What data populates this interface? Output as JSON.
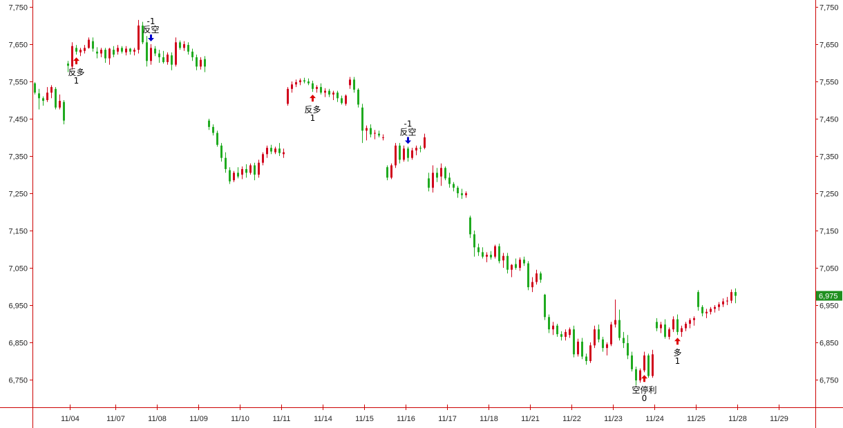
{
  "chart_data": {
    "type": "candlestick",
    "title": "",
    "xlabel": "",
    "ylabel": "",
    "ylim": [
      6680,
      7780
    ],
    "yticks": [
      6750,
      6850,
      6950,
      7050,
      7150,
      7250,
      7350,
      7450,
      7550,
      7650,
      7750
    ],
    "ytick_labels": [
      "6,750",
      "6,850",
      "6,950",
      "7,050",
      "7,150",
      "7,250",
      "7,350",
      "7,450",
      "7,550",
      "7,650",
      "7,750"
    ],
    "date_labels": [
      "11/04",
      "11/07",
      "11/08",
      "11/09",
      "11/10",
      "11/11",
      "11/14",
      "11/15",
      "11/16",
      "11/17",
      "11/18",
      "11/21",
      "11/22",
      "11/23",
      "11/24",
      "11/25",
      "11/28",
      "11/29"
    ],
    "date_start_index": [
      9,
      20,
      30,
      40,
      50,
      60,
      70,
      80,
      90,
      100,
      110,
      120,
      130,
      140,
      150,
      160,
      170,
      180
    ],
    "grid": false,
    "colors": {
      "up": "#d0021b",
      "down": "#1faa1f",
      "axis": "#cc0000",
      "buy": "#dd0000",
      "sell": "#0000cc",
      "last_bg": "#1f8f1f"
    },
    "last_price": {
      "value": 6975,
      "label": "6,975"
    },
    "candles": [
      [
        7545,
        7548,
        7515,
        7520
      ],
      [
        7518,
        7530,
        7475,
        7505
      ],
      [
        7505,
        7510,
        7485,
        7498
      ],
      [
        7500,
        7535,
        7495,
        7520
      ],
      [
        7520,
        7540,
        7505,
        7535
      ],
      [
        7530,
        7535,
        7475,
        7480
      ],
      [
        7480,
        7515,
        7475,
        7498
      ],
      [
        7495,
        7500,
        7435,
        7445
      ],
      [
        7598,
        7605,
        7575,
        7592
      ],
      [
        7590,
        7655,
        7582,
        7645
      ],
      [
        7640,
        7648,
        7622,
        7630
      ],
      [
        7628,
        7640,
        7618,
        7635
      ],
      [
        7632,
        7648,
        7625,
        7640
      ],
      [
        7640,
        7668,
        7638,
        7662
      ],
      [
        7658,
        7668,
        7630,
        7638
      ],
      [
        7630,
        7642,
        7612,
        7625
      ],
      [
        7625,
        7640,
        7615,
        7635
      ],
      [
        7635,
        7640,
        7600,
        7612
      ],
      [
        7612,
        7640,
        7595,
        7638
      ],
      [
        7635,
        7645,
        7615,
        7622
      ],
      [
        7630,
        7648,
        7622,
        7640
      ],
      [
        7640,
        7645,
        7625,
        7630
      ],
      [
        7628,
        7645,
        7620,
        7638
      ],
      [
        7638,
        7640,
        7622,
        7630
      ],
      [
        7630,
        7640,
        7620,
        7635
      ],
      [
        7635,
        7715,
        7625,
        7700
      ],
      [
        7700,
        7710,
        7650,
        7655
      ],
      [
        7655,
        7672,
        7590,
        7605
      ],
      [
        7605,
        7650,
        7595,
        7640
      ],
      [
        7638,
        7645,
        7618,
        7625
      ],
      [
        7625,
        7635,
        7600,
        7615
      ],
      [
        7615,
        7632,
        7598,
        7602
      ],
      [
        7602,
        7628,
        7595,
        7622
      ],
      [
        7620,
        7628,
        7580,
        7595
      ],
      [
        7595,
        7668,
        7590,
        7655
      ],
      [
        7655,
        7660,
        7635,
        7640
      ],
      [
        7640,
        7658,
        7632,
        7650
      ],
      [
        7648,
        7655,
        7622,
        7630
      ],
      [
        7630,
        7638,
        7605,
        7615
      ],
      [
        7615,
        7622,
        7580,
        7590
      ],
      [
        7590,
        7615,
        7582,
        7608
      ],
      [
        7610,
        7618,
        7575,
        7590
      ],
      [
        7445,
        7450,
        7420,
        7428
      ],
      [
        7428,
        7435,
        7405,
        7412
      ],
      [
        7412,
        7418,
        7375,
        7380
      ],
      [
        7378,
        7385,
        7335,
        7345
      ],
      [
        7345,
        7360,
        7305,
        7315
      ],
      [
        7312,
        7320,
        7275,
        7282
      ],
      [
        7285,
        7310,
        7280,
        7305
      ],
      [
        7305,
        7320,
        7290,
        7295
      ],
      [
        7300,
        7322,
        7288,
        7315
      ],
      [
        7315,
        7328,
        7292,
        7305
      ],
      [
        7305,
        7330,
        7300,
        7325
      ],
      [
        7325,
        7332,
        7285,
        7300
      ],
      [
        7300,
        7340,
        7292,
        7332
      ],
      [
        7332,
        7360,
        7325,
        7355
      ],
      [
        7355,
        7378,
        7345,
        7372
      ],
      [
        7372,
        7380,
        7355,
        7362
      ],
      [
        7360,
        7375,
        7355,
        7370
      ],
      [
        7370,
        7385,
        7350,
        7358
      ],
      [
        7355,
        7370,
        7345,
        7360
      ],
      [
        7490,
        7535,
        7485,
        7530
      ],
      [
        7530,
        7550,
        7520,
        7542
      ],
      [
        7542,
        7555,
        7535,
        7548
      ],
      [
        7548,
        7558,
        7540,
        7553
      ],
      [
        7553,
        7560,
        7545,
        7550
      ],
      [
        7550,
        7558,
        7540,
        7545
      ],
      [
        7545,
        7552,
        7522,
        7530
      ],
      [
        7530,
        7540,
        7520,
        7535
      ],
      [
        7535,
        7545,
        7515,
        7520
      ],
      [
        7520,
        7532,
        7508,
        7525
      ],
      [
        7525,
        7530,
        7508,
        7515
      ],
      [
        7515,
        7525,
        7500,
        7520
      ],
      [
        7520,
        7525,
        7495,
        7505
      ],
      [
        7505,
        7512,
        7488,
        7492
      ],
      [
        7490,
        7515,
        7485,
        7512
      ],
      [
        7540,
        7562,
        7530,
        7555
      ],
      [
        7555,
        7562,
        7520,
        7528
      ],
      [
        7528,
        7532,
        7480,
        7488
      ],
      [
        7480,
        7490,
        7385,
        7418
      ],
      [
        7418,
        7432,
        7392,
        7425
      ],
      [
        7425,
        7435,
        7400,
        7408
      ],
      [
        7410,
        7420,
        7395,
        7412
      ],
      [
        7410,
        7418,
        7400,
        7405
      ],
      [
        7400,
        7408,
        7392,
        7400
      ],
      [
        7320,
        7325,
        7285,
        7292
      ],
      [
        7292,
        7330,
        7288,
        7325
      ],
      [
        7325,
        7385,
        7318,
        7378
      ],
      [
        7378,
        7385,
        7330,
        7340
      ],
      [
        7340,
        7378,
        7335,
        7370
      ],
      [
        7370,
        7375,
        7335,
        7345
      ],
      [
        7345,
        7372,
        7340,
        7365
      ],
      [
        7365,
        7378,
        7352,
        7372
      ],
      [
        7372,
        7378,
        7360,
        7370
      ],
      [
        7372,
        7410,
        7368,
        7400
      ],
      [
        7290,
        7305,
        7255,
        7265
      ],
      [
        7265,
        7325,
        7252,
        7305
      ],
      [
        7305,
        7318,
        7280,
        7292
      ],
      [
        7295,
        7330,
        7270,
        7318
      ],
      [
        7318,
        7322,
        7285,
        7290
      ],
      [
        7292,
        7305,
        7265,
        7275
      ],
      [
        7275,
        7280,
        7255,
        7265
      ],
      [
        7265,
        7270,
        7238,
        7250
      ],
      [
        7250,
        7262,
        7235,
        7245
      ],
      [
        7245,
        7255,
        7238,
        7250
      ],
      [
        7185,
        7190,
        7130,
        7140
      ],
      [
        7140,
        7150,
        7080,
        7105
      ],
      [
        7105,
        7115,
        7082,
        7092
      ],
      [
        7092,
        7105,
        7075,
        7080
      ],
      [
        7080,
        7092,
        7065,
        7085
      ],
      [
        7085,
        7095,
        7072,
        7078
      ],
      [
        7080,
        7112,
        7075,
        7108
      ],
      [
        7108,
        7115,
        7062,
        7068
      ],
      [
        7070,
        7090,
        7050,
        7082
      ],
      [
        7082,
        7090,
        7035,
        7045
      ],
      [
        7045,
        7060,
        7025,
        7058
      ],
      [
        7060,
        7075,
        7045,
        7050
      ],
      [
        7050,
        7078,
        7042,
        7072
      ],
      [
        7072,
        7080,
        7055,
        7062
      ],
      [
        7062,
        7068,
        6990,
        6998
      ],
      [
        6998,
        7025,
        6985,
        7012
      ],
      [
        7012,
        7045,
        7005,
        7035
      ],
      [
        7035,
        7040,
        7010,
        7018
      ],
      [
        6978,
        6980,
        6910,
        6918
      ],
      [
        6918,
        6925,
        6875,
        6885
      ],
      [
        6885,
        6905,
        6870,
        6895
      ],
      [
        6895,
        6900,
        6865,
        6872
      ],
      [
        6872,
        6880,
        6855,
        6865
      ],
      [
        6865,
        6885,
        6855,
        6878
      ],
      [
        6870,
        6890,
        6862,
        6885
      ],
      [
        6885,
        6895,
        6810,
        6818
      ],
      [
        6818,
        6860,
        6812,
        6852
      ],
      [
        6852,
        6862,
        6805,
        6812
      ],
      [
        6812,
        6820,
        6790,
        6800
      ],
      [
        6800,
        6850,
        6795,
        6842
      ],
      [
        6842,
        6895,
        6835,
        6885
      ],
      [
        6885,
        6898,
        6850,
        6858
      ],
      [
        6858,
        6865,
        6825,
        6835
      ],
      [
        6835,
        6850,
        6815,
        6845
      ],
      [
        6845,
        6905,
        6840,
        6898
      ],
      [
        6898,
        6965,
        6890,
        6910
      ],
      [
        6910,
        6938,
        6855,
        6862
      ],
      [
        6862,
        6878,
        6835,
        6848
      ],
      [
        6848,
        6870,
        6805,
        6815
      ],
      [
        6815,
        6825,
        6772,
        6778
      ],
      [
        6778,
        6785,
        6735,
        6748
      ],
      [
        6748,
        6780,
        6742,
        6775
      ],
      [
        6775,
        6825,
        6770,
        6815
      ],
      [
        6815,
        6820,
        6755,
        6760
      ],
      [
        6760,
        6830,
        6755,
        6818
      ],
      [
        6905,
        6915,
        6880,
        6888
      ],
      [
        6888,
        6905,
        6875,
        6898
      ],
      [
        6898,
        6912,
        6860,
        6865
      ],
      [
        6865,
        6890,
        6858,
        6885
      ],
      [
        6885,
        6920,
        6878,
        6912
      ],
      [
        6912,
        6925,
        6870,
        6878
      ],
      [
        6878,
        6895,
        6865,
        6888
      ],
      [
        6888,
        6905,
        6880,
        6900
      ],
      [
        6900,
        6915,
        6888,
        6910
      ],
      [
        6910,
        6920,
        6895,
        6915
      ],
      [
        6985,
        6990,
        6935,
        6945
      ],
      [
        6945,
        6950,
        6920,
        6928
      ],
      [
        6928,
        6940,
        6915,
        6932
      ],
      [
        6932,
        6945,
        6925,
        6940
      ],
      [
        6940,
        6950,
        6930,
        6945
      ],
      [
        6945,
        6958,
        6935,
        6952
      ],
      [
        6952,
        6968,
        6945,
        6960
      ],
      [
        6960,
        6972,
        6950,
        6962
      ],
      [
        6962,
        6992,
        6955,
        6985
      ],
      [
        6985,
        6995,
        6955,
        6975
      ]
    ],
    "signals": [
      {
        "index": 10,
        "type": "buy",
        "label": "反多",
        "value": "1"
      },
      {
        "index": 28,
        "type": "sell",
        "label": "反空",
        "value": "-1"
      },
      {
        "index": 67,
        "type": "buy",
        "label": "反多",
        "value": "1"
      },
      {
        "index": 90,
        "type": "sell",
        "label": "反空",
        "value": "-1"
      },
      {
        "index": 147,
        "type": "buy",
        "label": "空停利",
        "value": "0"
      },
      {
        "index": 155,
        "type": "buy",
        "label": "多",
        "value": "1"
      }
    ]
  }
}
